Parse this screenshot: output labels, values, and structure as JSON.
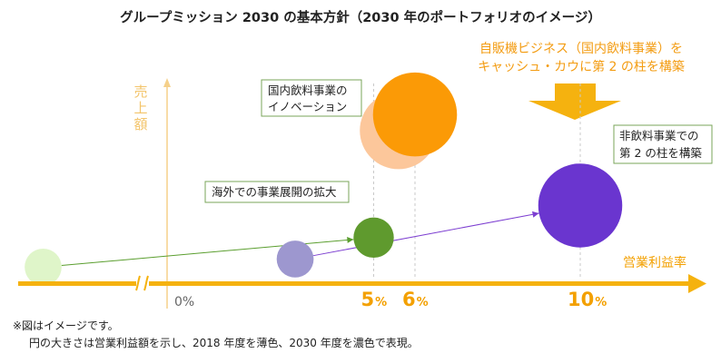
{
  "title": "グループミッション 2030 の基本方針（2030 年のポートフォリオのイメージ）",
  "headline": {
    "line1": "自販機ビジネス（国内飲料事業）を",
    "line2": "キャッシュ・カウに第 2 の柱を構築"
  },
  "colors": {
    "axis": "#f5b20f",
    "arrow_callout": "#f5b20f",
    "guide": "#c9c9c9",
    "y_axis": "#f5d08a",
    "green_arrow": "#5a9e2e",
    "purple_arrow": "#7d3fd1",
    "box_border": "#7aa65a"
  },
  "chart_data": {
    "type": "scatter",
    "xlabel": "営業利益率",
    "ylabel": "売上額",
    "x_ticks": [
      {
        "value": "0",
        "suffix": "%"
      },
      {
        "value": "5",
        "suffix": "%"
      },
      {
        "value": "6",
        "suffix": "%"
      },
      {
        "value": "10",
        "suffix": "%"
      }
    ],
    "bubbles": [
      {
        "group": "light-green",
        "year": "2018",
        "x": -3.0,
        "y": 0.6,
        "size": 0.55,
        "color": "#dff5c9"
      },
      {
        "group": "green",
        "year": "2030",
        "x": 5.0,
        "y": 1.7,
        "size": 0.6,
        "color": "#5f9a2e"
      },
      {
        "group": "light-purple",
        "year": "2018",
        "x": 3.1,
        "y": 0.9,
        "size": 0.55,
        "color": "#9d97cf"
      },
      {
        "group": "purple",
        "year": "2030",
        "x": 10.0,
        "y": 2.9,
        "size": 1.25,
        "color": "#6a35cf"
      },
      {
        "group": "light-orange",
        "year": "2018",
        "x": 5.6,
        "y": 5.7,
        "size": 1.15,
        "color": "#fcc79b"
      },
      {
        "group": "orange",
        "year": "2030",
        "x": 6.0,
        "y": 6.3,
        "size": 1.25,
        "color": "#fb9a06"
      }
    ],
    "arrows": [
      {
        "from": "light-green",
        "to": "green"
      },
      {
        "from": "light-purple",
        "to": "purple"
      }
    ],
    "guide_lines": [
      5,
      6,
      10
    ],
    "annotations": {
      "domestic": [
        "国内飲料事業の",
        "イノベーション"
      ],
      "overseas": [
        "海外での事業展開の拡大"
      ],
      "nonbeverage": [
        "非飲料事業での",
        "第 2 の柱を構築"
      ]
    }
  },
  "notes": [
    "※図はイメージです。",
    "円の大きさは営業利益額を示し、2018 年度を薄色、2030 年度を濃色で表現。"
  ]
}
